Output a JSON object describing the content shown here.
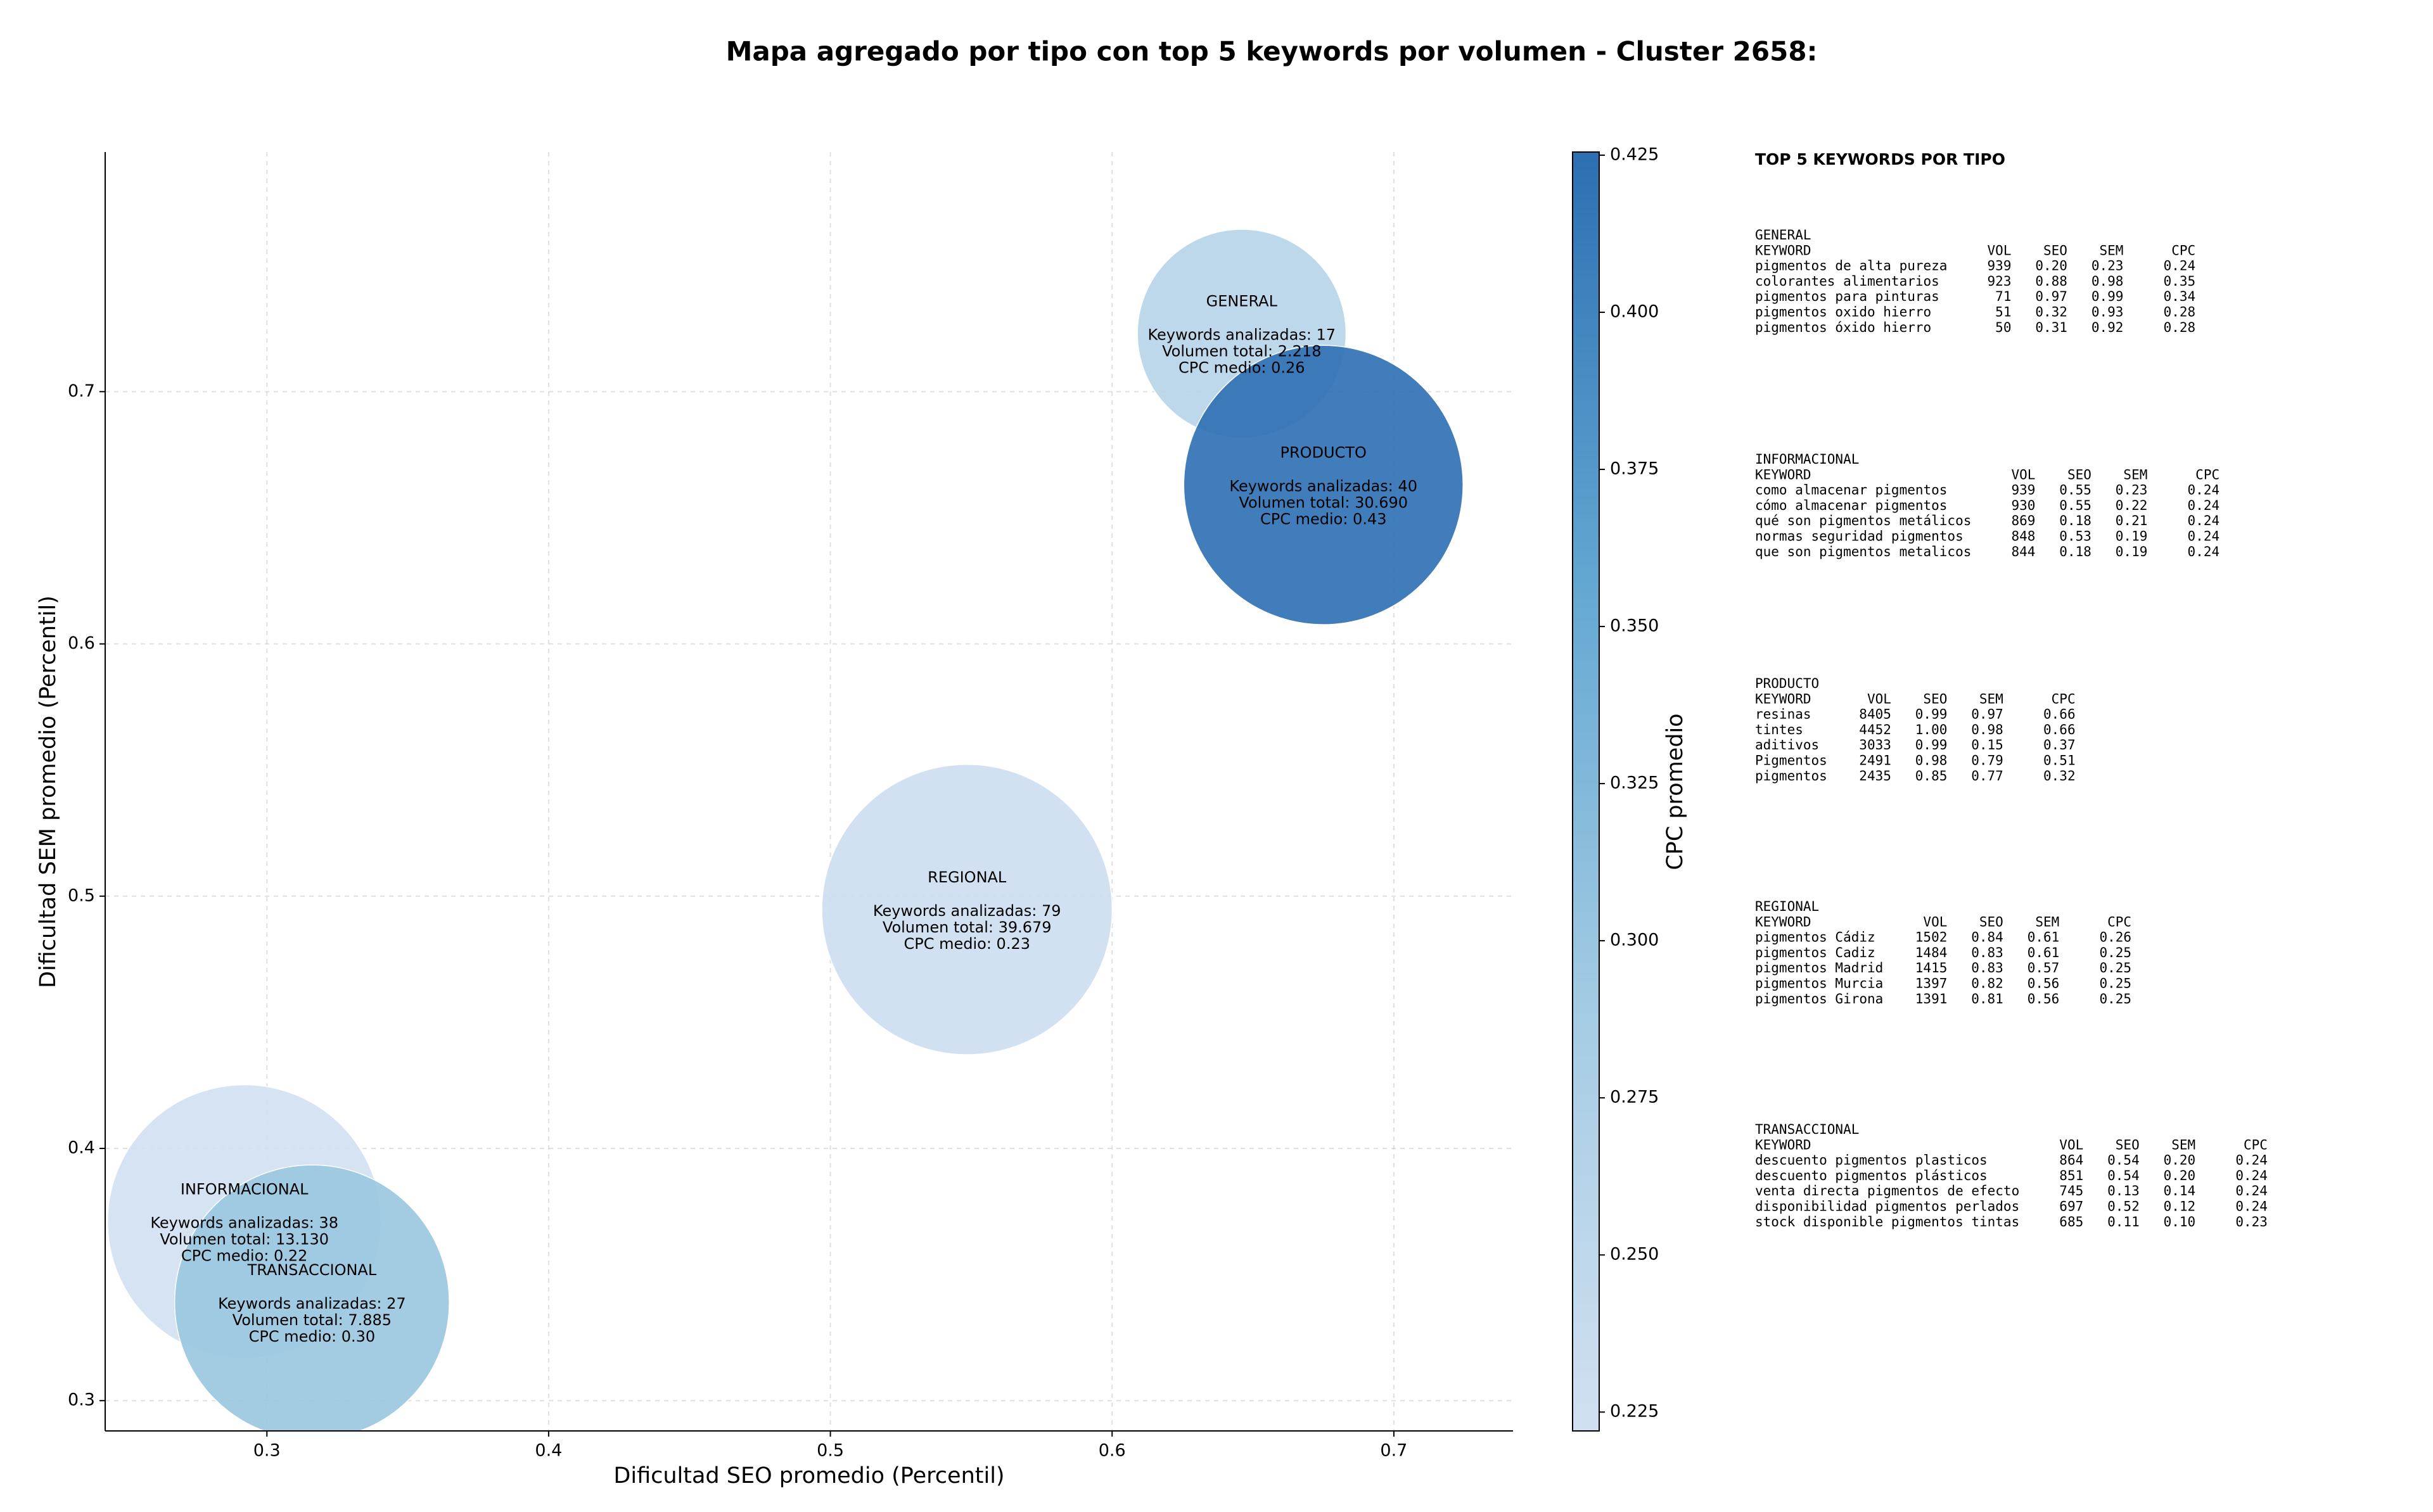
{
  "chart_data": {
    "type": "bubble",
    "title": "Mapa agregado por tipo con top 5 keywords por volumen - Cluster 2658:",
    "xlabel": "Dificultad SEO promedio (Percentil)",
    "ylabel": "Dificultad SEM promedio (Percentil)",
    "xlim": [
      0.2426,
      0.7423
    ],
    "ylim": [
      0.288,
      0.795
    ],
    "xticks": [
      0.3,
      0.4,
      0.5,
      0.6,
      0.7
    ],
    "yticks": [
      0.3,
      0.4,
      0.5,
      0.6,
      0.7
    ],
    "grid": true,
    "categories": [
      "GENERAL",
      "INFORMACIONAL",
      "PRODUCTO",
      "REGIONAL",
      "TRANSACCIONAL"
    ],
    "x": [
      0.646,
      0.292,
      0.675,
      0.5485,
      0.316
    ],
    "y": [
      0.723,
      0.371,
      0.663,
      0.4947,
      0.339
    ],
    "sizes": [
      4420,
      7600,
      7920,
      8560,
      7660
    ],
    "cpc": [
      0.26,
      0.2225,
      0.4255,
      0.23,
      0.3
    ],
    "annotations": [
      [
        "Keywords analizadas: 17",
        "Volumen total: 2.218",
        "CPC medio: 0.26"
      ],
      [
        "Keywords analizadas: 38",
        "Volumen total: 13.130",
        "CPC medio: 0.22"
      ],
      [
        "Keywords analizadas: 40",
        "Volumen total: 30.690",
        "CPC medio: 0.43"
      ],
      [
        "Keywords analizadas: 79",
        "Volumen total: 39.679",
        "CPC medio: 0.23"
      ],
      [
        "Keywords analizadas: 27",
        "Volumen total: 7.885",
        "CPC medio: 0.30"
      ]
    ],
    "colorbar": {
      "label": "CPC promedio",
      "lim": [
        0.222,
        0.4255
      ],
      "ticks": [
        0.225,
        {
          "value": 0.25,
          "label": "0.250"
        },
        0.275,
        {
          "value": 0.3,
          "label": "0.300"
        },
        0.325,
        {
          "value": 0.35,
          "label": "0.350"
        },
        0.375,
        {
          "value": 0.4,
          "label": "0.400"
        },
        0.425
      ],
      "colormap": [
        "#d1e0f1",
        "#a3cbe3",
        "#62a7d2",
        "#2c6fb2"
      ]
    }
  },
  "side_panel": {
    "title": "TOP 5 KEYWORDS POR TIPO",
    "tables": [
      {
        "title": "GENERAL",
        "header": [
          "KEYWORD",
          "VOL",
          "SEO",
          "SEM",
          "CPC"
        ],
        "rows": [
          [
            "pigmentos de alta pureza",
            "939",
            "0.20",
            "0.23",
            "0.24"
          ],
          [
            "colorantes alimentarios",
            "923",
            "0.88",
            "0.98",
            "0.35"
          ],
          [
            "pigmentos para pinturas",
            "71",
            "0.97",
            "0.99",
            "0.34"
          ],
          [
            "pigmentos oxido hierro",
            "51",
            "0.32",
            "0.93",
            "0.28"
          ],
          [
            "pigmentos óxido hierro",
            "50",
            "0.31",
            "0.92",
            "0.28"
          ]
        ]
      },
      {
        "title": "INFORMACIONAL",
        "header": [
          "KEYWORD",
          "VOL",
          "SEO",
          "SEM",
          "CPC"
        ],
        "rows": [
          [
            "como almacenar pigmentos",
            "939",
            "0.55",
            "0.23",
            "0.24"
          ],
          [
            "cómo almacenar pigmentos",
            "930",
            "0.55",
            "0.22",
            "0.24"
          ],
          [
            "qué son pigmentos metálicos",
            "869",
            "0.18",
            "0.21",
            "0.24"
          ],
          [
            "normas seguridad pigmentos",
            "848",
            "0.53",
            "0.19",
            "0.24"
          ],
          [
            "que son pigmentos metalicos",
            "844",
            "0.18",
            "0.19",
            "0.24"
          ]
        ]
      },
      {
        "title": "PRODUCTO",
        "header": [
          "KEYWORD",
          "VOL",
          "SEO",
          "SEM",
          "CPC"
        ],
        "rows": [
          [
            "resinas",
            "8405",
            "0.99",
            "0.97",
            "0.66"
          ],
          [
            "tintes",
            "4452",
            "1.00",
            "0.98",
            "0.66"
          ],
          [
            "aditivos",
            "3033",
            "0.99",
            "0.15",
            "0.37"
          ],
          [
            "Pigmentos",
            "2491",
            "0.98",
            "0.79",
            "0.51"
          ],
          [
            "pigmentos",
            "2435",
            "0.85",
            "0.77",
            "0.32"
          ]
        ]
      },
      {
        "title": "REGIONAL",
        "header": [
          "KEYWORD",
          "VOL",
          "SEO",
          "SEM",
          "CPC"
        ],
        "rows": [
          [
            "pigmentos Cádiz",
            "1502",
            "0.84",
            "0.61",
            "0.26"
          ],
          [
            "pigmentos Cadiz",
            "1484",
            "0.83",
            "0.61",
            "0.25"
          ],
          [
            "pigmentos Madrid",
            "1415",
            "0.83",
            "0.57",
            "0.25"
          ],
          [
            "pigmentos Murcia",
            "1397",
            "0.82",
            "0.56",
            "0.25"
          ],
          [
            "pigmentos Girona",
            "1391",
            "0.81",
            "0.56",
            "0.25"
          ]
        ]
      },
      {
        "title": "TRANSACCIONAL",
        "header": [
          "KEYWORD",
          "VOL",
          "SEO",
          "SEM",
          "CPC"
        ],
        "rows": [
          [
            "descuento pigmentos plasticos",
            "864",
            "0.54",
            "0.20",
            "0.24"
          ],
          [
            "descuento pigmentos plásticos",
            "851",
            "0.54",
            "0.20",
            "0.24"
          ],
          [
            "venta directa pigmentos de efecto",
            "745",
            "0.13",
            "0.14",
            "0.24"
          ],
          [
            "disponibilidad pigmentos perlados",
            "697",
            "0.52",
            "0.12",
            "0.24"
          ],
          [
            "stock disponible pigmentos tintas",
            "685",
            "0.11",
            "0.10",
            "0.23"
          ]
        ]
      }
    ]
  }
}
